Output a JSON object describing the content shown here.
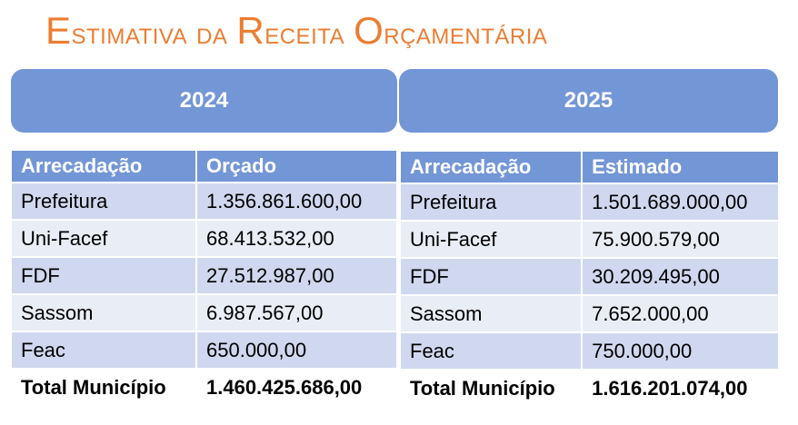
{
  "title": "Estimativa da Receita Orçamentária",
  "colors": {
    "title": "#ed7d31",
    "header": "#7396d6",
    "row_dark": "#cfd8ee",
    "row_light": "#e9edf6"
  },
  "tables": [
    {
      "year": "2024",
      "headers": [
        "Arrecadação",
        "Orçado"
      ],
      "rows": [
        [
          "Prefeitura",
          "1.356.861.600,00"
        ],
        [
          "Uni-Facef",
          "68.413.532,00"
        ],
        [
          "FDF",
          "27.512.987,00"
        ],
        [
          "Sassom",
          "6.987.567,00"
        ],
        [
          "Feac",
          "650.000,00"
        ]
      ],
      "total": [
        "Total Município",
        "1.460.425.686,00"
      ]
    },
    {
      "year": "2025",
      "headers": [
        "Arrecadação",
        "Estimado"
      ],
      "rows": [
        [
          "Prefeitura",
          "1.501.689.000,00"
        ],
        [
          "Uni-Facef",
          "75.900.579,00"
        ],
        [
          "FDF",
          "30.209.495,00"
        ],
        [
          "Sassom",
          "7.652.000,00"
        ],
        [
          "Feac",
          "750.000,00"
        ]
      ],
      "total": [
        "Total Município",
        "1.616.201.074,00"
      ]
    }
  ]
}
